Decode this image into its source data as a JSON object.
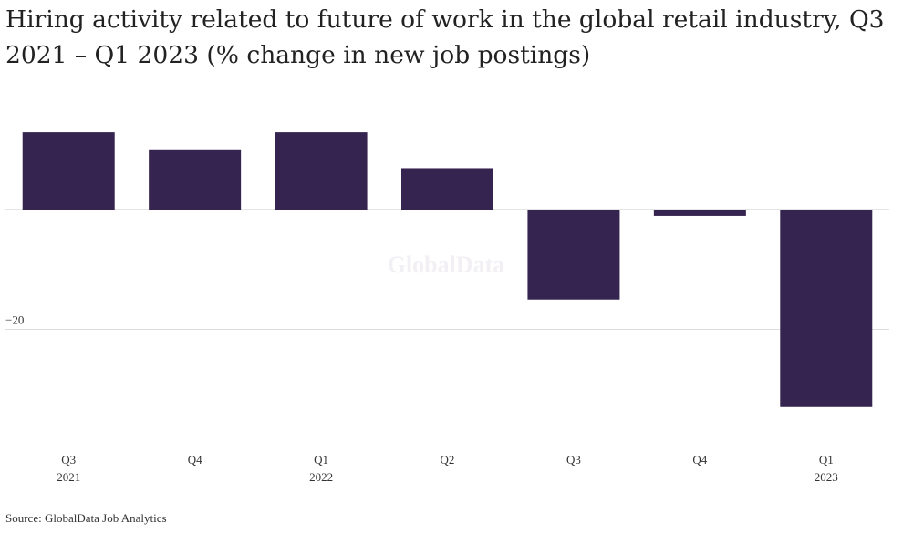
{
  "title": "Hiring activity related to future of work in the global retail industry, Q3 2021 – Q1 2023 (% change in new job postings)",
  "source": "Source: GlobalData Job Analytics",
  "watermark": "GlobalData",
  "colors": {
    "bar": "#352350",
    "zero_line": "#333333",
    "grid": "#dddddd"
  },
  "chart_data": {
    "type": "bar",
    "categories": [
      "Q3 2021",
      "Q4 2021",
      "Q1 2022",
      "Q2 2022",
      "Q3 2022",
      "Q4 2022",
      "Q1 2023"
    ],
    "tick_labels": [
      {
        "top": "Q3",
        "bottom": "2021"
      },
      {
        "top": "Q4",
        "bottom": ""
      },
      {
        "top": "Q1",
        "bottom": "2022"
      },
      {
        "top": "Q2",
        "bottom": ""
      },
      {
        "top": "Q3",
        "bottom": ""
      },
      {
        "top": "Q4",
        "bottom": ""
      },
      {
        "top": "Q1",
        "bottom": "2023"
      }
    ],
    "values": [
      13,
      10,
      13,
      7,
      -15,
      -1,
      -33
    ],
    "ylim": [
      -37,
      15
    ],
    "yticks": [
      {
        "value": -20,
        "label": "−20"
      }
    ],
    "xlabel": "",
    "ylabel": "",
    "grid": true,
    "legend": "none"
  }
}
